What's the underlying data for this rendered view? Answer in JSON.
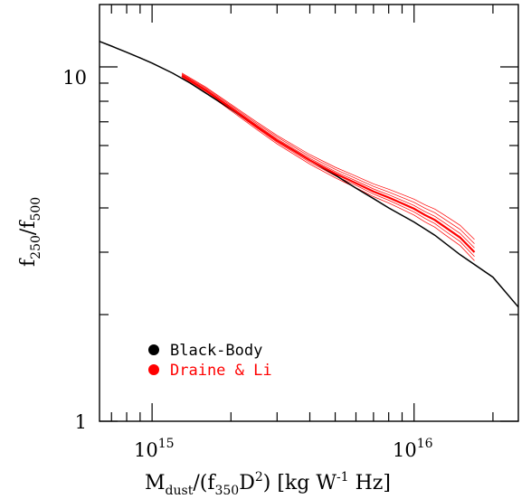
{
  "chart_data": {
    "type": "line",
    "title": "",
    "xlabel": {
      "main": "M",
      "main_sub": "dust",
      "mid": "/(f",
      "mid_sub": "350",
      "tail": "D",
      "tail_sup": "2",
      "units_open": ") [kg W",
      "units_sup": "-1",
      "units_close": " Hz]"
    },
    "ylabel": {
      "num": "f",
      "num_sub": "250",
      "slash": "/f",
      "den_sub": "500"
    },
    "x_scale": "log",
    "y_scale": "log",
    "xlim": [
      630000000000000.0,
      2.5e+16
    ],
    "ylim": [
      1,
      15
    ],
    "x_tick_labels": [
      {
        "value": 1000000000000000.0,
        "base": "10",
        "exp": "15"
      },
      {
        "value": 1e+16,
        "base": "10",
        "exp": "16"
      }
    ],
    "y_tick_labels": [
      {
        "value": 1,
        "text": "1"
      },
      {
        "value": 10,
        "text": "10"
      }
    ],
    "grid": false,
    "legend": {
      "position": "bottom-left",
      "entries": [
        {
          "label": "Black-Body",
          "color": "#000000"
        },
        {
          "label": "Draine & Li",
          "color": "#ff0000"
        }
      ]
    },
    "series": [
      {
        "name": "Black-Body",
        "color": "#000000",
        "x": [
          630000000000000.0,
          700000000000000.0,
          800000000000000.0,
          900000000000000.0,
          1000000000000000.0,
          1200000000000000.0,
          1400000000000000.0,
          1700000000000000.0,
          2000000000000000.0,
          2500000000000000.0,
          3000000000000000.0,
          3500000000000000.0,
          4000000000000000.0,
          5000000000000000.0,
          6000000000000000.0,
          7000000000000000.0,
          8000000000000000.0,
          1e+16,
          1.2e+16,
          1.5e+16,
          2e+16,
          2.5e+16
        ],
        "y": [
          11.8,
          11.45,
          11.0,
          10.6,
          10.25,
          9.6,
          9.0,
          8.2,
          7.6,
          6.8,
          6.2,
          5.8,
          5.45,
          4.95,
          4.55,
          4.25,
          4.0,
          3.65,
          3.35,
          2.95,
          2.55,
          2.1
        ]
      },
      {
        "name": "Draine & Li",
        "color": "#ff0000",
        "x": [
          1300000000000000.0,
          1600000000000000.0,
          2000000000000000.0,
          2500000000000000.0,
          3000000000000000.0,
          4000000000000000.0,
          5000000000000000.0,
          6000000000000000.0,
          7000000000000000.0,
          8000000000000000.0,
          9000000000000000.0,
          1e+16,
          1.1e+16,
          1.2e+16,
          1.3e+16,
          1.5e+16,
          1.7e+16
        ],
        "y": [
          9.45,
          8.6,
          7.65,
          6.8,
          6.2,
          5.45,
          5.0,
          4.7,
          4.45,
          4.28,
          4.12,
          3.98,
          3.82,
          3.7,
          3.55,
          3.3,
          3.0
        ]
      }
    ]
  }
}
